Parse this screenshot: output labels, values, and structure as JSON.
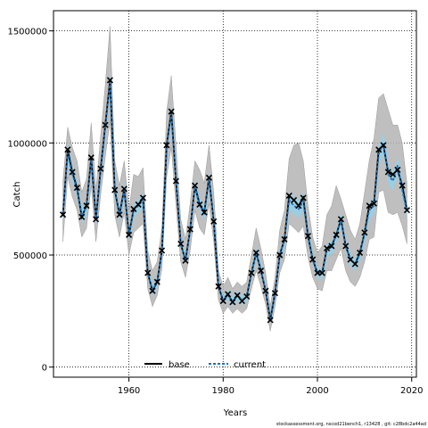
{
  "chart_data": {
    "type": "line",
    "xlabel": "Years",
    "ylabel": "Catch",
    "xlim": [
      1944,
      2021
    ],
    "ylim": [
      -45000,
      1590000
    ],
    "x_ticks": [
      1960,
      1980,
      2000,
      2020
    ],
    "y_ticks": [
      0,
      500000,
      1000000,
      1500000
    ],
    "x_tick_labels": [
      "1960",
      "1980",
      "2000",
      "2020"
    ],
    "y_tick_labels": [
      "0",
      "500000",
      "1000000",
      "1500000"
    ],
    "grid": true,
    "legend_position": "bottom-left",
    "colors": {
      "base": "#000000",
      "current": "#1e6fb3",
      "current_band": "#8fd3ee",
      "base_band": "#b4b4b4",
      "marker": "#000000"
    },
    "x": [
      1946,
      1947,
      1948,
      1949,
      1950,
      1951,
      1952,
      1953,
      1954,
      1955,
      1956,
      1957,
      1958,
      1959,
      1960,
      1961,
      1962,
      1963,
      1964,
      1965,
      1966,
      1967,
      1968,
      1969,
      1970,
      1971,
      1972,
      1973,
      1974,
      1975,
      1976,
      1977,
      1978,
      1979,
      1980,
      1981,
      1982,
      1983,
      1984,
      1985,
      1986,
      1987,
      1988,
      1989,
      1990,
      1991,
      1992,
      1993,
      1994,
      1995,
      1996,
      1997,
      1998,
      1999,
      2000,
      2001,
      2002,
      2003,
      2004,
      2005,
      2006,
      2007,
      2008,
      2009,
      2010,
      2011,
      2012,
      2013,
      2014,
      2015,
      2016,
      2017,
      2018,
      2019
    ],
    "series": [
      {
        "name": "base",
        "values": [
          680000,
          970000,
          870000,
          800000,
          670000,
          720000,
          935000,
          660000,
          885000,
          1080000,
          1280000,
          790000,
          680000,
          795000,
          590000,
          705000,
          725000,
          755000,
          420000,
          340000,
          380000,
          520000,
          990000,
          1140000,
          830000,
          550000,
          475000,
          615000,
          810000,
          725000,
          690000,
          845000,
          650000,
          360000,
          295000,
          325000,
          290000,
          320000,
          295000,
          315000,
          420000,
          510000,
          430000,
          340000,
          210000,
          330000,
          500000,
          570000,
          765000,
          745000,
          720000,
          755000,
          585000,
          480000,
          420000,
          420000,
          530000,
          540000,
          590000,
          660000,
          540000,
          480000,
          460000,
          510000,
          600000,
          720000,
          730000,
          970000,
          990000,
          870000,
          860000,
          880000,
          810000,
          700000
        ],
        "lower": [
          560000,
          850000,
          760000,
          700000,
          580000,
          620000,
          810000,
          560000,
          770000,
          940000,
          1100000,
          680000,
          580000,
          690000,
          500000,
          600000,
          620000,
          640000,
          350000,
          270000,
          320000,
          440000,
          850000,
          980000,
          720000,
          470000,
          400000,
          520000,
          700000,
          620000,
          590000,
          730000,
          560000,
          300000,
          240000,
          270000,
          240000,
          260000,
          240000,
          260000,
          350000,
          430000,
          360000,
          280000,
          160000,
          270000,
          420000,
          480000,
          640000,
          620000,
          600000,
          630000,
          490000,
          400000,
          350000,
          340000,
          430000,
          430000,
          480000,
          530000,
          430000,
          380000,
          360000,
          400000,
          470000,
          570000,
          580000,
          780000,
          790000,
          690000,
          680000,
          690000,
          630000,
          550000
        ],
        "upper": [
          830000,
          1070000,
          980000,
          920000,
          780000,
          840000,
          1090000,
          790000,
          1030000,
          1260000,
          1520000,
          920000,
          810000,
          920000,
          700000,
          860000,
          850000,
          890000,
          520000,
          430000,
          470000,
          620000,
          1140000,
          1300000,
          990000,
          660000,
          570000,
          730000,
          920000,
          880000,
          820000,
          990000,
          780000,
          430000,
          360000,
          400000,
          350000,
          380000,
          360000,
          380000,
          500000,
          620000,
          530000,
          420000,
          270000,
          400000,
          610000,
          700000,
          930000,
          990000,
          1000000,
          920000,
          720000,
          580000,
          510000,
          540000,
          680000,
          720000,
          810000,
          750000,
          680000,
          610000,
          570000,
          640000,
          780000,
          920000,
          1020000,
          1200000,
          1220000,
          1150000,
          1080000,
          1080000,
          1000000,
          820000
        ]
      },
      {
        "name": "current",
        "values": [
          690000,
          955000,
          860000,
          795000,
          675000,
          715000,
          925000,
          655000,
          880000,
          1070000,
          1270000,
          785000,
          675000,
          790000,
          590000,
          700000,
          720000,
          745000,
          420000,
          345000,
          380000,
          515000,
          985000,
          1130000,
          825000,
          550000,
          478000,
          612000,
          805000,
          720000,
          688000,
          840000,
          648000,
          362000,
          298000,
          326000,
          292000,
          322000,
          297000,
          318000,
          422000,
          508000,
          432000,
          342000,
          215000,
          332000,
          498000,
          568000,
          745000,
          720000,
          705000,
          740000,
          580000,
          478000,
          418000,
          418000,
          525000,
          535000,
          590000,
          655000,
          538000,
          478000,
          458000,
          505000,
          595000,
          700000,
          720000,
          950000,
          1000000,
          860000,
          830000,
          900000,
          790000,
          695000
        ],
        "lower": [
          650000,
          910000,
          820000,
          760000,
          640000,
          680000,
          890000,
          620000,
          840000,
          1030000,
          1230000,
          750000,
          640000,
          750000,
          560000,
          670000,
          690000,
          710000,
          395000,
          320000,
          355000,
          490000,
          950000,
          1090000,
          790000,
          520000,
          450000,
          585000,
          770000,
          690000,
          655000,
          805000,
          615000,
          340000,
          278000,
          305000,
          272000,
          300000,
          277000,
          296000,
          398000,
          482000,
          406000,
          318000,
          195000,
          308000,
          472000,
          540000,
          705000,
          680000,
          665000,
          700000,
          548000,
          450000,
          392000,
          392000,
          497000,
          505000,
          558000,
          620000,
          508000,
          450000,
          432000,
          478000,
          562000,
          665000,
          685000,
          905000,
          950000,
          815000,
          790000,
          860000,
          750000,
          660000
        ],
        "upper": [
          730000,
          1000000,
          900000,
          830000,
          710000,
          750000,
          960000,
          690000,
          920000,
          1110000,
          1310000,
          820000,
          710000,
          830000,
          620000,
          730000,
          750000,
          780000,
          445000,
          370000,
          405000,
          540000,
          1020000,
          1170000,
          860000,
          580000,
          506000,
          640000,
          840000,
          750000,
          721000,
          875000,
          681000,
          384000,
          318000,
          347000,
          312000,
          344000,
          317000,
          340000,
          446000,
          534000,
          458000,
          366000,
          235000,
          356000,
          524000,
          596000,
          785000,
          760000,
          745000,
          780000,
          612000,
          506000,
          444000,
          444000,
          553000,
          565000,
          622000,
          690000,
          568000,
          506000,
          484000,
          532000,
          628000,
          735000,
          755000,
          995000,
          1050000,
          905000,
          870000,
          940000,
          830000,
          730000
        ]
      }
    ],
    "legend": [
      {
        "label": "base",
        "style": "solid",
        "color": "#000000"
      },
      {
        "label": "current",
        "style": "dashed",
        "color": "#1e6fb3"
      }
    ]
  },
  "footnote": "stockassessment.org, nscod21bench1, r13428 , git: c28bdc2a44ad"
}
